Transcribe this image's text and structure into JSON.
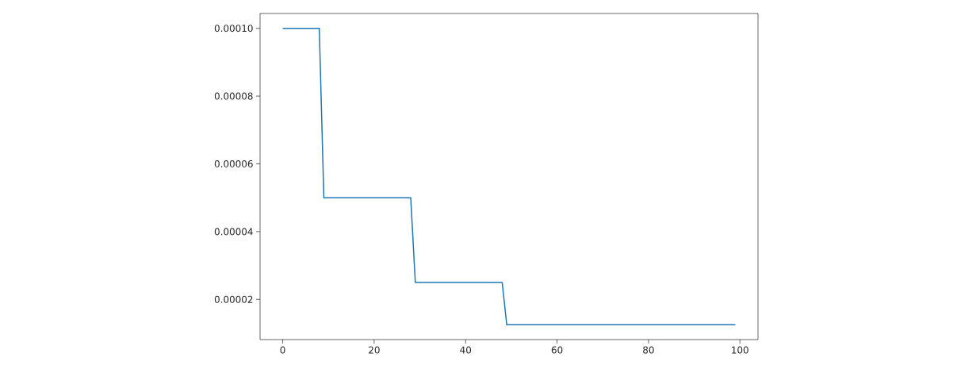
{
  "chart_data": {
    "type": "line",
    "x": [
      0,
      8,
      9,
      28,
      29,
      48,
      49,
      99
    ],
    "values": [
      0.0001,
      0.0001,
      5e-05,
      5e-05,
      2.5e-05,
      2.5e-05,
      1.25e-05,
      1.25e-05
    ],
    "color": "#1f77b4",
    "xlim": [
      -4.95,
      103.95
    ],
    "ylim": [
      8.125e-06,
      0.000104375
    ],
    "xticks": [
      0,
      20,
      40,
      60,
      80,
      100
    ],
    "yticks": [
      {
        "value": 2e-05,
        "label": "0.00002"
      },
      {
        "value": 4e-05,
        "label": "0.00004"
      },
      {
        "value": 6e-05,
        "label": "0.00006"
      },
      {
        "value": 8e-05,
        "label": "0.00008"
      },
      {
        "value": 0.0001,
        "label": "0.00010"
      }
    ]
  }
}
